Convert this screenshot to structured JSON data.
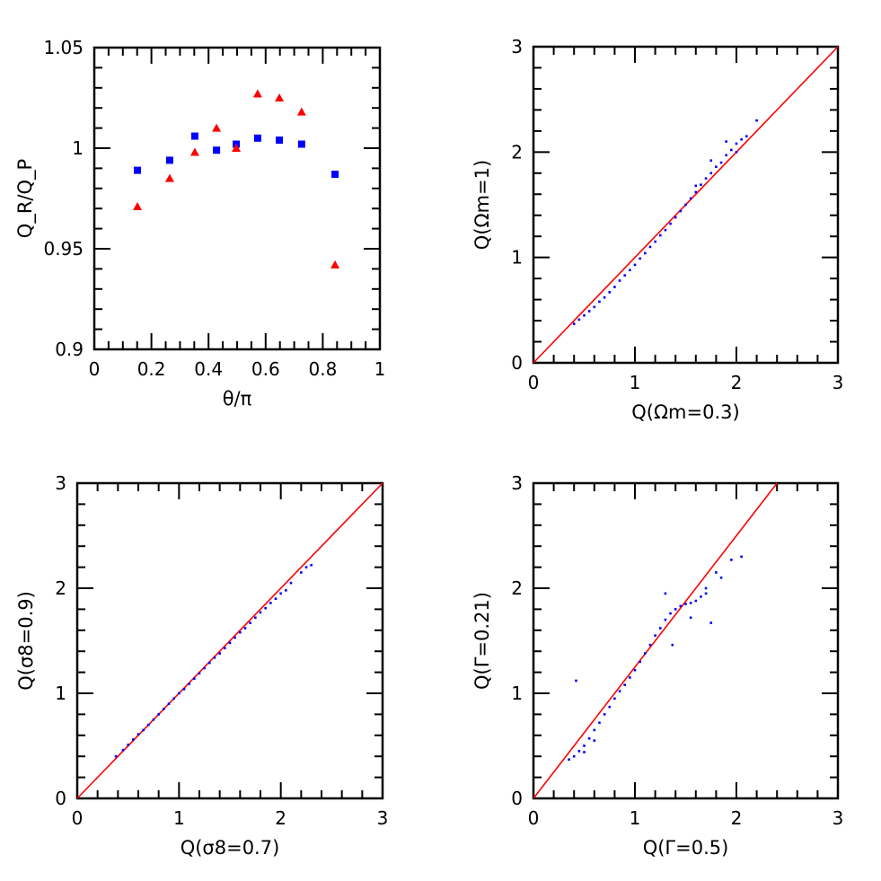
{
  "chart_data": [
    {
      "type": "scatter",
      "xlabel": "θ/π",
      "ylabel": "Q_R/Q_P",
      "xlim": [
        0,
        1
      ],
      "ylim": [
        0.9,
        1.05
      ],
      "xticks": [
        "0",
        "0.2",
        "0.4",
        "0.6",
        "0.8",
        "1"
      ],
      "yticks": [
        "0.9",
        "0.95",
        "1",
        "1.05"
      ],
      "grid": false,
      "series": [
        {
          "marker": "square",
          "color": "#0000ff",
          "x": [
            0.151,
            0.264,
            0.352,
            0.428,
            0.497,
            0.572,
            0.648,
            0.726,
            0.843
          ],
          "y": [
            0.989,
            0.994,
            1.006,
            0.999,
            1.002,
            1.005,
            1.004,
            1.002,
            0.987
          ]
        },
        {
          "marker": "triangle",
          "color": "#ff0000",
          "x": [
            0.151,
            0.264,
            0.352,
            0.428,
            0.497,
            0.572,
            0.648,
            0.726,
            0.843
          ],
          "y": [
            0.971,
            0.985,
            0.998,
            1.01,
            1.0,
            1.027,
            1.025,
            1.018,
            0.942
          ]
        }
      ]
    },
    {
      "type": "scatter",
      "xlabel": "Q(Ωm=0.3)",
      "ylabel": "Q(Ωm=1)",
      "xlim": [
        0,
        3
      ],
      "ylim": [
        0,
        3
      ],
      "xticks": [
        "0",
        "1",
        "2",
        "3"
      ],
      "yticks": [
        "0",
        "1",
        "2",
        "3"
      ],
      "grid": false,
      "reference_line": {
        "slope": 1,
        "color": "#ff0000"
      },
      "points_color": "#0000ff",
      "points": [
        [
          0.4,
          0.37
        ],
        [
          0.45,
          0.41
        ],
        [
          0.5,
          0.45
        ],
        [
          0.55,
          0.49
        ],
        [
          0.6,
          0.53
        ],
        [
          0.65,
          0.58
        ],
        [
          0.7,
          0.62
        ],
        [
          0.75,
          0.67
        ],
        [
          0.8,
          0.72
        ],
        [
          0.85,
          0.78
        ],
        [
          0.9,
          0.83
        ],
        [
          0.95,
          0.88
        ],
        [
          1.0,
          0.93
        ],
        [
          1.05,
          0.99
        ],
        [
          1.1,
          1.04
        ],
        [
          1.15,
          1.1
        ],
        [
          1.2,
          1.15
        ],
        [
          1.25,
          1.21
        ],
        [
          1.3,
          1.26
        ],
        [
          1.35,
          1.32
        ],
        [
          1.4,
          1.38
        ],
        [
          1.45,
          1.44
        ],
        [
          1.5,
          1.5
        ],
        [
          1.55,
          1.56
        ],
        [
          1.6,
          1.62
        ],
        [
          1.65,
          1.69
        ],
        [
          1.7,
          1.75
        ],
        [
          1.75,
          1.8
        ],
        [
          1.8,
          1.86
        ],
        [
          1.85,
          1.9
        ],
        [
          1.9,
          1.97
        ],
        [
          1.95,
          2.02
        ],
        [
          2.0,
          2.08
        ],
        [
          2.05,
          2.12
        ],
        [
          2.1,
          2.15
        ],
        [
          2.2,
          2.3
        ],
        [
          1.75,
          1.92
        ],
        [
          1.9,
          2.1
        ],
        [
          2.0,
          2.0
        ],
        [
          1.6,
          1.68
        ]
      ]
    },
    {
      "type": "scatter",
      "xlabel": "Q(σ8=0.7)",
      "ylabel": "Q(σ8=0.9)",
      "xlim": [
        0,
        3
      ],
      "ylim": [
        0,
        3
      ],
      "xticks": [
        "0",
        "1",
        "2",
        "3"
      ],
      "yticks": [
        "0",
        "1",
        "2",
        "3"
      ],
      "grid": false,
      "reference_line": {
        "slope": 1,
        "color": "#ff0000"
      },
      "points_color": "#0000ff",
      "points": [
        [
          0.38,
          0.4
        ],
        [
          0.45,
          0.46
        ],
        [
          0.5,
          0.51
        ],
        [
          0.55,
          0.56
        ],
        [
          0.6,
          0.61
        ],
        [
          0.65,
          0.65
        ],
        [
          0.7,
          0.7
        ],
        [
          0.75,
          0.75
        ],
        [
          0.8,
          0.8
        ],
        [
          0.85,
          0.85
        ],
        [
          0.9,
          0.9
        ],
        [
          0.95,
          0.95
        ],
        [
          1.0,
          1.0
        ],
        [
          1.05,
          1.04
        ],
        [
          1.1,
          1.09
        ],
        [
          1.15,
          1.14
        ],
        [
          1.2,
          1.19
        ],
        [
          1.25,
          1.24
        ],
        [
          1.3,
          1.29
        ],
        [
          1.35,
          1.34
        ],
        [
          1.4,
          1.38
        ],
        [
          1.45,
          1.43
        ],
        [
          1.5,
          1.48
        ],
        [
          1.55,
          1.53
        ],
        [
          1.6,
          1.58
        ],
        [
          1.65,
          1.62
        ],
        [
          1.7,
          1.67
        ],
        [
          1.75,
          1.72
        ],
        [
          1.8,
          1.77
        ],
        [
          1.85,
          1.81
        ],
        [
          1.9,
          1.86
        ],
        [
          1.95,
          1.9
        ],
        [
          2.0,
          1.95
        ],
        [
          2.1,
          2.05
        ],
        [
          2.2,
          2.15
        ],
        [
          2.3,
          2.22
        ],
        [
          2.25,
          2.2
        ],
        [
          2.05,
          1.98
        ]
      ]
    },
    {
      "type": "scatter",
      "xlabel": "Q(Γ=0.5)",
      "ylabel": "Q(Γ=0.21)",
      "xlim": [
        0,
        3
      ],
      "ylim": [
        0,
        3
      ],
      "xticks": [
        "0",
        "1",
        "2",
        "3"
      ],
      "yticks": [
        "0",
        "1",
        "2",
        "3"
      ],
      "grid": false,
      "reference_line": {
        "slope": 1.25,
        "color": "#ff0000"
      },
      "points_color": "#0000ff",
      "points": [
        [
          0.35,
          0.37
        ],
        [
          0.4,
          0.4
        ],
        [
          0.45,
          0.45
        ],
        [
          0.5,
          0.5
        ],
        [
          0.55,
          0.57
        ],
        [
          0.6,
          0.65
        ],
        [
          0.65,
          0.72
        ],
        [
          0.7,
          0.8
        ],
        [
          0.75,
          0.87
        ],
        [
          0.8,
          0.95
        ],
        [
          0.85,
          1.02
        ],
        [
          0.9,
          1.08
        ],
        [
          0.95,
          1.15
        ],
        [
          1.0,
          1.22
        ],
        [
          1.05,
          1.3
        ],
        [
          1.1,
          1.38
        ],
        [
          1.15,
          1.46
        ],
        [
          1.2,
          1.55
        ],
        [
          1.25,
          1.62
        ],
        [
          1.3,
          1.7
        ],
        [
          1.35,
          1.76
        ],
        [
          1.4,
          1.8
        ],
        [
          1.45,
          1.83
        ],
        [
          1.5,
          1.85
        ],
        [
          1.55,
          1.86
        ],
        [
          1.6,
          1.88
        ],
        [
          1.65,
          1.92
        ],
        [
          1.7,
          1.95
        ],
        [
          1.85,
          2.1
        ],
        [
          1.75,
          1.67
        ],
        [
          1.37,
          1.46
        ],
        [
          0.42,
          1.12
        ],
        [
          1.95,
          2.27
        ],
        [
          2.05,
          2.3
        ],
        [
          1.8,
          2.15
        ],
        [
          1.3,
          1.95
        ],
        [
          1.55,
          1.72
        ],
        [
          1.7,
          2.0
        ],
        [
          0.6,
          0.55
        ],
        [
          0.5,
          0.44
        ]
      ]
    }
  ]
}
